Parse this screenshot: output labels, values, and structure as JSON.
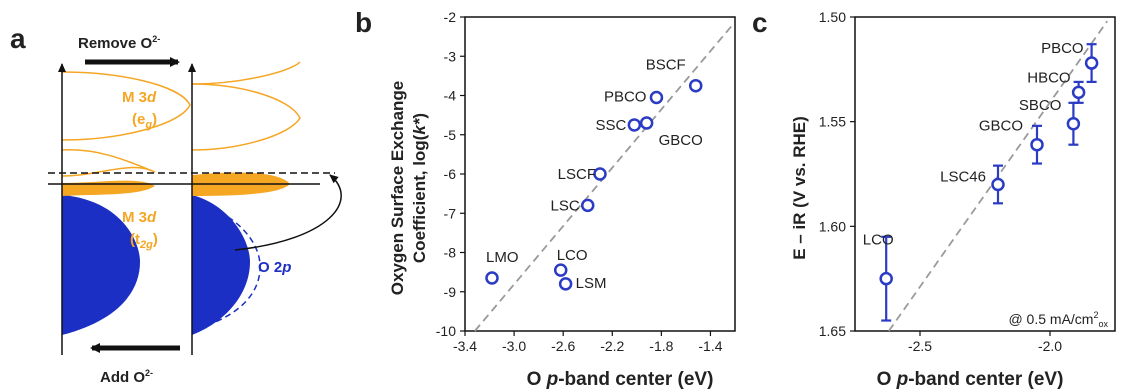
{
  "panel_a": {
    "letter": "a",
    "remove_label": "Remove O",
    "remove_sup": "2-",
    "add_label": "Add O",
    "add_sup": "2-",
    "eg_top": "M 3",
    "eg_top_italic": "d",
    "eg_sub": "(e",
    "eg_sub_italic": "g",
    "t2g_top": "M 3",
    "t2g_top_italic": "d",
    "t2g_sub": "(t",
    "t2g_sub_italic": "2g",
    "o2p": "O 2",
    "o2p_italic": "p",
    "colors": {
      "orange": "#f5a623",
      "blue": "#1b2fc4",
      "black": "#111111"
    }
  },
  "chart_data": [
    {
      "type": "scatter",
      "panel": "b",
      "ylabel_line1": "Oxygen Surface Exchange",
      "ylabel_line2_pre": "Coefficient, log(",
      "ylabel_line2_it": "k*",
      "ylabel_line2_post": ")",
      "xlabel_pre": "O ",
      "xlabel_it": "p",
      "xlabel_post": "-band center (eV)",
      "xlim": [
        -3.4,
        -1.2
      ],
      "ylim": [
        -10,
        -2
      ],
      "xticks": [
        -3.4,
        -3.0,
        -2.6,
        -2.2,
        -1.8,
        -1.4
      ],
      "xtick_labels": [
        "-3.4",
        "-3.0",
        "-2.6",
        "-2.2",
        "-1.8",
        "-1.4"
      ],
      "yticks": [
        -10,
        -9,
        -8,
        -7,
        -6,
        -5,
        -4,
        -3,
        -2
      ],
      "ytick_labels": [
        "-10",
        "-9",
        "-8",
        "-7",
        "-6",
        "-5",
        "-4",
        "-3",
        "-2"
      ],
      "points": [
        {
          "label": "BSCF",
          "x": -1.52,
          "y": -3.75
        },
        {
          "label": "PBCO",
          "x": -1.84,
          "y": -4.05
        },
        {
          "label": "SSC",
          "x": -2.02,
          "y": -4.75
        },
        {
          "label": "GBCO",
          "x": -1.92,
          "y": -4.7
        },
        {
          "label": "LSCF",
          "x": -2.3,
          "y": -6.0
        },
        {
          "label": "LSC",
          "x": -2.4,
          "y": -6.8
        },
        {
          "label": "LMO",
          "x": -3.18,
          "y": -8.65
        },
        {
          "label": "LCO",
          "x": -2.62,
          "y": -8.45
        },
        {
          "label": "LSM",
          "x": -2.58,
          "y": -8.8
        }
      ],
      "trend_line": {
        "x": [
          -3.32,
          -1.22
        ],
        "y": [
          -10,
          -2.2
        ]
      }
    },
    {
      "type": "scatter",
      "panel": "c",
      "ylabel": "E – iR (V vs. RHE)",
      "xlabel_pre": "O ",
      "xlabel_it": "p",
      "xlabel_post": "-band center (eV)",
      "annotation_pre": "@ 0.5 mA/cm",
      "annotation_sup": "2",
      "annotation_sub": "ox",
      "xlim": [
        -2.75,
        -1.75
      ],
      "ylim": [
        1.5,
        1.65
      ],
      "y_inverted": true,
      "xticks": [
        -2.5,
        -2.0
      ],
      "xtick_labels": [
        "-2.5",
        "-2.0"
      ],
      "yticks": [
        1.5,
        1.55,
        1.6,
        1.65
      ],
      "ytick_labels": [
        "1.50",
        "1.55",
        "1.60",
        "1.65"
      ],
      "points": [
        {
          "label": "PBCO",
          "x": -1.84,
          "y": 1.522,
          "err": 0.009
        },
        {
          "label": "HBCO",
          "x": -1.89,
          "y": 1.536,
          "err": 0.005
        },
        {
          "label": "SBCO",
          "x": -1.91,
          "y": 1.551,
          "err": 0.01
        },
        {
          "label": "GBCO",
          "x": -2.05,
          "y": 1.561,
          "err": 0.009
        },
        {
          "label": "LSC46",
          "x": -2.2,
          "y": 1.58,
          "err": 0.009
        },
        {
          "label": "LCO",
          "x": -2.63,
          "y": 1.625,
          "err": 0.02
        }
      ],
      "trend_line": {
        "x": [
          -2.62,
          -1.78
        ],
        "y": [
          1.65,
          1.502
        ]
      }
    }
  ]
}
